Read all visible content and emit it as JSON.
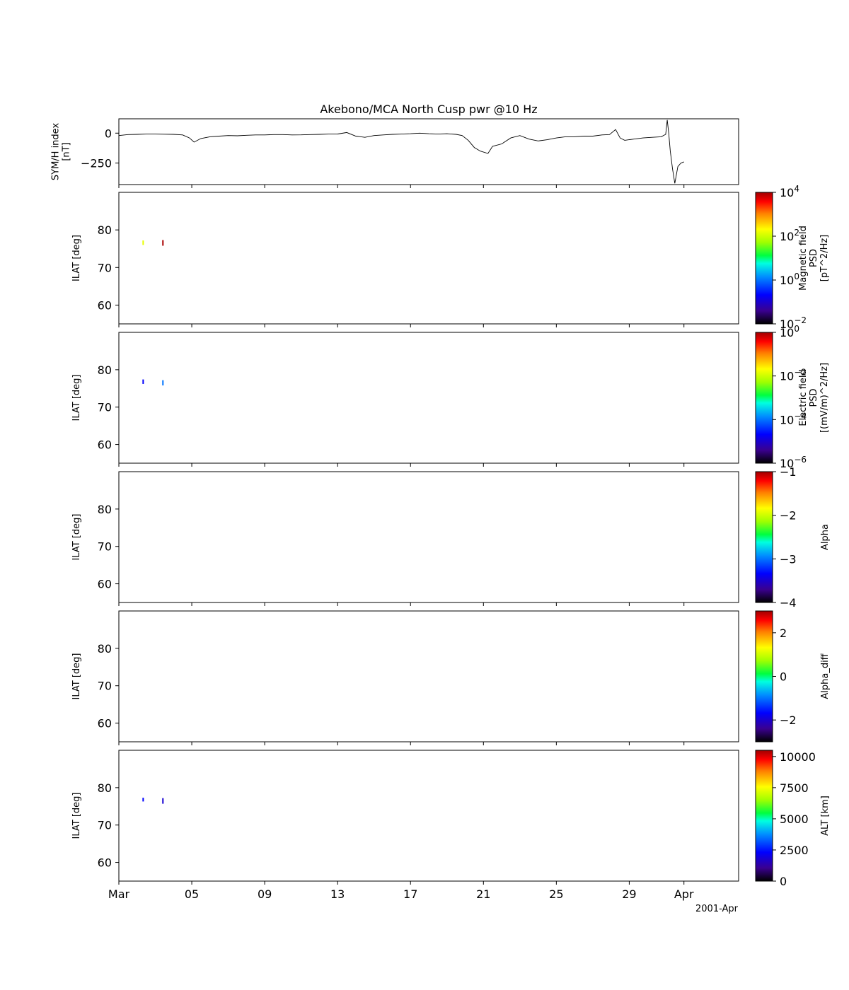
{
  "figure": {
    "title": "Akebono/MCA North Cusp pwr @10 Hz",
    "date_label": "2001-Apr"
  },
  "x_axis": {
    "start": "2001-03-01",
    "end": "2001-04-04",
    "ticks": [
      {
        "date": "2001-03-01",
        "label": "Mar"
      },
      {
        "date": "2001-03-05",
        "label": "05"
      },
      {
        "date": "2001-03-09",
        "label": "09"
      },
      {
        "date": "2001-03-13",
        "label": "13"
      },
      {
        "date": "2001-03-17",
        "label": "17"
      },
      {
        "date": "2001-03-21",
        "label": "21"
      },
      {
        "date": "2001-03-25",
        "label": "25"
      },
      {
        "date": "2001-03-29",
        "label": "29"
      },
      {
        "date": "2001-04-01",
        "label": "Apr"
      }
    ]
  },
  "chart_data": [
    {
      "type": "line",
      "panel": "symh",
      "ylabel": "SYM/H index\n[nT]",
      "ylim": [
        -430,
        120
      ],
      "yticks": [
        {
          "value": 0,
          "label": "0"
        },
        {
          "value": -250,
          "label": "−250"
        }
      ],
      "color": "#000000",
      "series": [
        {
          "x": [
            "2001-03-01 00:00",
            "2001-03-01 12:00",
            "2001-03-02 00:00",
            "2001-03-02 12:00",
            "2001-03-03 00:00",
            "2001-03-03 12:00",
            "2001-03-04 00:00",
            "2001-03-04 12:00",
            "2001-03-04 21:00",
            "2001-03-05 03:00",
            "2001-03-05 12:00",
            "2001-03-06 00:00",
            "2001-03-06 12:00",
            "2001-03-07 00:00",
            "2001-03-07 12:00",
            "2001-03-08 00:00",
            "2001-03-08 12:00",
            "2001-03-09 00:00",
            "2001-03-09 12:00",
            "2001-03-10 00:00",
            "2001-03-10 12:00",
            "2001-03-11 00:00",
            "2001-03-11 12:00",
            "2001-03-12 00:00",
            "2001-03-12 12:00",
            "2001-03-13 00:00",
            "2001-03-13 12:00",
            "2001-03-14 00:00",
            "2001-03-14 12:00",
            "2001-03-15 00:00",
            "2001-03-15 12:00",
            "2001-03-16 00:00",
            "2001-03-16 12:00",
            "2001-03-17 00:00",
            "2001-03-17 12:00",
            "2001-03-18 00:00",
            "2001-03-18 12:00",
            "2001-03-19 00:00",
            "2001-03-19 12:00",
            "2001-03-19 20:00",
            "2001-03-20 04:00",
            "2001-03-20 12:00",
            "2001-03-20 20:00",
            "2001-03-21 06:00",
            "2001-03-21 12:00",
            "2001-03-22 00:00",
            "2001-03-22 12:00",
            "2001-03-23 00:00",
            "2001-03-23 12:00",
            "2001-03-24 00:00",
            "2001-03-24 12:00",
            "2001-03-25 00:00",
            "2001-03-25 12:00",
            "2001-03-26 00:00",
            "2001-03-26 12:00",
            "2001-03-27 00:00",
            "2001-03-27 12:00",
            "2001-03-27 22:00",
            "2001-03-28 06:00",
            "2001-03-28 12:00",
            "2001-03-28 18:00",
            "2001-03-29 06:00",
            "2001-03-29 18:00",
            "2001-03-30 06:00",
            "2001-03-30 18:00",
            "2001-03-31 00:00",
            "2001-03-31 02:00",
            "2001-03-31 04:00",
            "2001-03-31 06:00",
            "2001-03-31 09:00",
            "2001-03-31 12:00",
            "2001-03-31 16:00",
            "2001-03-31 20:00",
            "2001-04-01 00:00"
          ],
          "y": [
            -20,
            -12,
            -10,
            -8,
            -8,
            -9,
            -10,
            -15,
            -40,
            -75,
            -45,
            -30,
            -25,
            -20,
            -22,
            -18,
            -15,
            -15,
            -12,
            -12,
            -15,
            -14,
            -12,
            -10,
            -8,
            -7,
            5,
            -25,
            -35,
            -20,
            -15,
            -10,
            -8,
            -5,
            0,
            -5,
            -8,
            -5,
            -10,
            -20,
            -60,
            -120,
            -150,
            -170,
            -110,
            -90,
            -40,
            -20,
            -50,
            -65,
            -55,
            -40,
            -30,
            -30,
            -25,
            -25,
            -15,
            -12,
            30,
            -40,
            -60,
            -50,
            -40,
            -35,
            -30,
            -10,
            110,
            0,
            -150,
            -300,
            -420,
            -280,
            -250,
            -240
          ]
        }
      ]
    },
    {
      "type": "heatmap",
      "panel": "mag_psd",
      "ylabel": "ILAT [deg]",
      "ylim": [
        55,
        90
      ],
      "yticks": [
        60,
        70,
        80
      ],
      "colorbar": {
        "label": "Magnetic field\nPSD\n[pT^2/Hz]",
        "scale": "log",
        "range": [
          0.01,
          10000
        ],
        "ticks": [
          {
            "value": 0.01,
            "base": "10",
            "exp": "−2"
          },
          {
            "value": 1,
            "base": "10",
            "exp": "0"
          },
          {
            "value": 100,
            "base": "10",
            "exp": "2"
          },
          {
            "value": 10000,
            "base": "10",
            "exp": "4"
          }
        ]
      },
      "points": [
        {
          "x": "2001-03-02 08:00",
          "ilat_min": 76.0,
          "ilat_max": 77.2,
          "value": 150
        },
        {
          "x": "2001-03-03 10:00",
          "ilat_min": 75.8,
          "ilat_max": 77.3,
          "value": 9000
        }
      ]
    },
    {
      "type": "heatmap",
      "panel": "elec_psd",
      "ylabel": "ILAT [deg]",
      "ylim": [
        55,
        90
      ],
      "yticks": [
        60,
        70,
        80
      ],
      "colorbar": {
        "label": "Electric field\nPSD\n[(mV/m)^2/Hz]",
        "scale": "log",
        "range": [
          1e-06,
          1
        ],
        "ticks": [
          {
            "value": 1e-06,
            "base": "10",
            "exp": "−6"
          },
          {
            "value": 0.0001,
            "base": "10",
            "exp": "−4"
          },
          {
            "value": 0.01,
            "base": "10",
            "exp": "−2"
          },
          {
            "value": 1,
            "base": "10",
            "exp": "0"
          }
        ]
      },
      "points": [
        {
          "x": "2001-03-02 08:00",
          "ilat_min": 76.2,
          "ilat_max": 77.4,
          "value": 2e-05
        },
        {
          "x": "2001-03-03 10:00",
          "ilat_min": 75.8,
          "ilat_max": 77.2,
          "value": 0.0001
        }
      ]
    },
    {
      "type": "heatmap",
      "panel": "alpha",
      "ylabel": "ILAT [deg]",
      "ylim": [
        55,
        90
      ],
      "yticks": [
        60,
        70,
        80
      ],
      "colorbar": {
        "label": "Alpha",
        "scale": "linear",
        "range": [
          -4,
          -1
        ],
        "ticks": [
          {
            "value": -4,
            "label": "−4"
          },
          {
            "value": -3,
            "label": "−3"
          },
          {
            "value": -2,
            "label": "−2"
          },
          {
            "value": -1,
            "label": "−1"
          }
        ]
      },
      "points": []
    },
    {
      "type": "heatmap",
      "panel": "alpha_diff",
      "ylabel": "Alpha_diff",
      "ylim": [
        55,
        90
      ],
      "yticks": [
        60,
        70,
        80
      ],
      "axis_label": "ILAT [deg]",
      "colorbar": {
        "label": "Alpha_diff",
        "scale": "linear",
        "range": [
          -3,
          3
        ],
        "ticks": [
          {
            "value": -2,
            "label": "−2"
          },
          {
            "value": 0,
            "label": "0"
          },
          {
            "value": 2,
            "label": "2"
          }
        ]
      },
      "points": []
    },
    {
      "type": "heatmap",
      "panel": "alt",
      "ylabel": "ILAT [deg]",
      "ylim": [
        55,
        90
      ],
      "yticks": [
        60,
        70,
        80
      ],
      "colorbar": {
        "label": "ALT [km]",
        "scale": "linear",
        "range": [
          0,
          10500
        ],
        "ticks": [
          {
            "value": 0,
            "label": "0"
          },
          {
            "value": 2500,
            "label": "2500"
          },
          {
            "value": 5000,
            "label": "5000"
          },
          {
            "value": 7500,
            "label": "7500"
          },
          {
            "value": 10000,
            "label": "10000"
          }
        ]
      },
      "points": [
        {
          "x": "2001-03-02 08:00",
          "ilat_min": 76.3,
          "ilat_max": 77.3,
          "value": 2300
        },
        {
          "x": "2001-03-03 10:00",
          "ilat_min": 75.7,
          "ilat_max": 77.2,
          "value": 1800
        }
      ]
    }
  ]
}
